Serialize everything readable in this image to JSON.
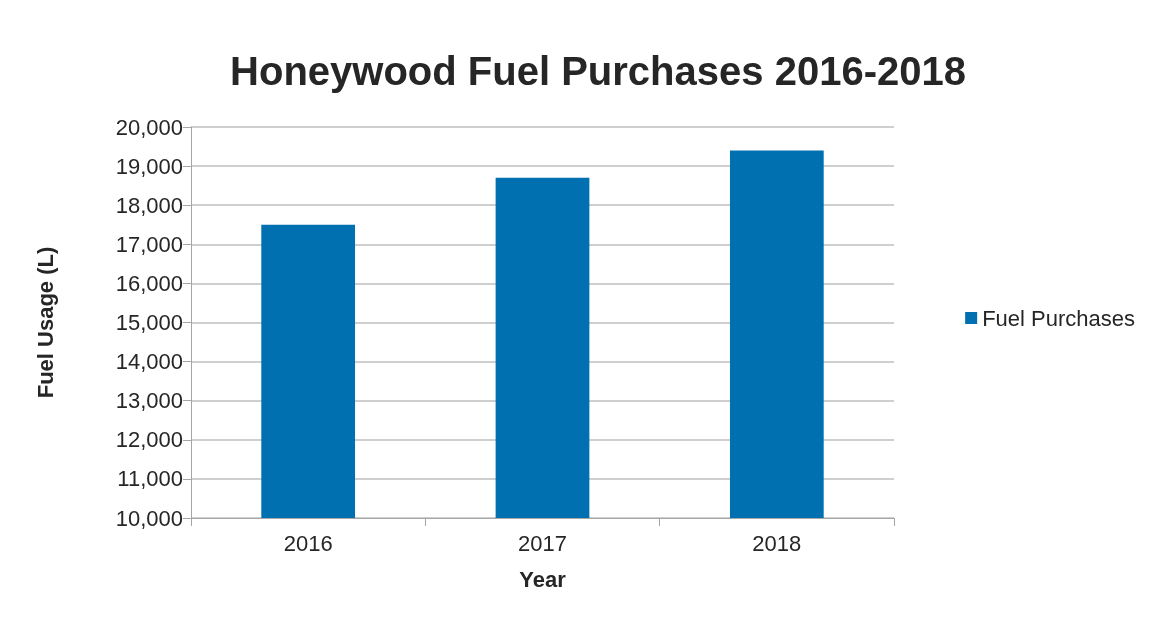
{
  "chart_data": {
    "type": "bar",
    "title": "Honeywood Fuel Purchases 2016-2018",
    "xlabel": "Year",
    "ylabel": "Fuel Usage (L)",
    "categories": [
      "2016",
      "2017",
      "2018"
    ],
    "series": [
      {
        "name": "Fuel Purchases",
        "color": "#0070b0",
        "values": [
          17500,
          18700,
          19400
        ]
      }
    ],
    "ylim": [
      10000,
      20000
    ],
    "yticks": [
      {
        "value": 10000,
        "label": "10,000"
      },
      {
        "value": 11000,
        "label": "11,000"
      },
      {
        "value": 12000,
        "label": "12,000"
      },
      {
        "value": 13000,
        "label": "13,000"
      },
      {
        "value": 14000,
        "label": "14,000"
      },
      {
        "value": 15000,
        "label": "15,000"
      },
      {
        "value": 16000,
        "label": "16,000"
      },
      {
        "value": 17000,
        "label": "17,000"
      },
      {
        "value": 18000,
        "label": "18,000"
      },
      {
        "value": 19000,
        "label": "19,000"
      },
      {
        "value": 20000,
        "label": "20,000"
      }
    ],
    "grid": "y",
    "legend": "right"
  }
}
